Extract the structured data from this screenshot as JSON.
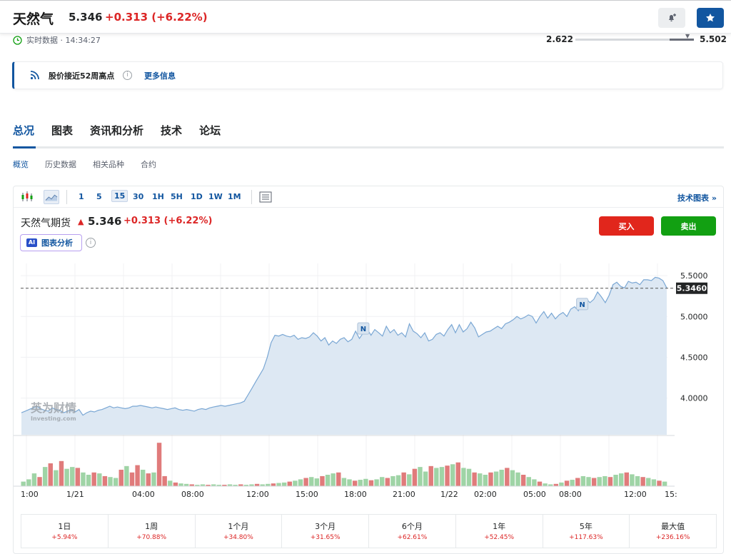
{
  "header": {
    "name": "天然气",
    "price": "5.346",
    "change": "+0.313",
    "change_pct": "(+6.22%)",
    "realtime": "实时数据 · 14:34:27",
    "range_low": "2.622",
    "range_high": "5.502"
  },
  "alert": {
    "text": "股价接近52周高点",
    "more": "更多信息"
  },
  "tabs": [
    "总况",
    "图表",
    "资讯和分析",
    "技术",
    "论坛"
  ],
  "subtabs": [
    "概览",
    "历史数据",
    "相关品种",
    "合约"
  ],
  "toolbar": {
    "timeframes": [
      "1",
      "5",
      "15",
      "30",
      "1H",
      "5H",
      "1D",
      "1W",
      "1M"
    ],
    "selected": "15",
    "tech_link": "技术图表 »"
  },
  "chart_header": {
    "name": "天然气期货",
    "price": "5.346",
    "change": "+0.313",
    "change_pct": "(+6.22%)",
    "ai_label": "图表分析",
    "ai_badge": "AI",
    "buy": "买入",
    "sell": "卖出"
  },
  "chart_data": {
    "type": "area",
    "ylim": [
      3.55,
      5.65
    ],
    "yticks": [
      "5.5000",
      "5.0000",
      "4.5000",
      "4.0000"
    ],
    "ytick_values": [
      5.5,
      5.0,
      4.5,
      4.0
    ],
    "current_label": "5.3460",
    "current_value": 5.346,
    "xticks": [
      "1:00",
      "1/21",
      "04:00",
      "08:00",
      "12:00",
      "15:00",
      "18:00",
      "21:00",
      "1/22",
      "02:00",
      "05:00",
      "08:00",
      "12:00",
      "15:"
    ],
    "watermark_cn": "英为财情",
    "watermark_en": "Investing.com",
    "news_marker": "N",
    "series": [
      {
        "values": [
          3.82,
          3.84,
          3.86,
          3.88,
          3.9,
          3.87,
          3.85,
          3.84,
          3.88,
          3.86,
          3.85,
          3.82,
          3.84,
          3.86,
          3.83,
          3.86,
          3.79,
          3.82,
          3.84,
          3.83,
          3.85,
          3.86,
          3.88,
          3.9,
          3.88,
          3.89,
          3.88,
          3.87,
          3.88,
          3.9,
          3.9,
          3.91,
          3.9,
          3.89,
          3.88,
          3.89,
          3.88,
          3.87,
          3.86,
          3.87,
          3.88,
          3.86,
          3.85,
          3.86,
          3.85,
          3.84,
          3.86,
          3.87,
          3.86,
          3.88,
          3.89,
          3.9,
          3.91,
          3.9,
          3.91,
          3.92,
          3.93,
          3.94,
          3.96,
          4.04,
          4.12,
          4.2,
          4.28,
          4.36,
          4.5,
          4.68,
          4.77,
          4.76,
          4.78,
          4.76,
          4.75,
          4.77,
          4.72,
          4.74,
          4.73,
          4.75,
          4.8,
          4.76,
          4.7,
          4.74,
          4.65,
          4.7,
          4.67,
          4.72,
          4.74,
          4.69,
          4.72,
          4.82,
          4.73,
          4.8,
          4.85,
          4.77,
          4.84,
          4.8,
          4.76,
          4.88,
          4.8,
          4.84,
          4.77,
          4.8,
          4.75,
          4.91,
          4.82,
          4.79,
          4.74,
          4.8,
          4.7,
          4.72,
          4.78,
          4.8,
          4.76,
          4.84,
          4.9,
          4.8,
          4.9,
          4.81,
          4.85,
          4.93,
          4.86,
          4.75,
          4.78,
          4.81,
          4.82,
          4.85,
          4.88,
          4.85,
          4.91,
          4.93,
          4.96,
          5.0,
          4.97,
          4.99,
          5.02,
          5.0,
          4.92,
          5.0,
          5.06,
          4.98,
          5.04,
          4.97,
          5.02,
          5.05,
          5.0,
          5.09,
          5.12,
          5.07,
          5.16,
          5.22,
          5.17,
          5.21,
          5.3,
          5.24,
          5.17,
          5.26,
          5.39,
          5.42,
          5.37,
          5.35,
          5.43,
          5.41,
          5.42,
          5.39,
          5.45,
          5.45,
          5.44,
          5.48,
          5.47,
          5.44,
          5.35
        ]
      }
    ],
    "volume": [
      {
        "v": 0.1,
        "d": "g"
      },
      {
        "v": 0.15,
        "d": "g"
      },
      {
        "v": 0.28,
        "d": "g"
      },
      {
        "v": 0.2,
        "d": "r"
      },
      {
        "v": 0.42,
        "d": "g"
      },
      {
        "v": 0.5,
        "d": "r"
      },
      {
        "v": 0.35,
        "d": "g"
      },
      {
        "v": 0.55,
        "d": "r"
      },
      {
        "v": 0.38,
        "d": "g"
      },
      {
        "v": 0.42,
        "d": "g"
      },
      {
        "v": 0.4,
        "d": "r"
      },
      {
        "v": 0.3,
        "d": "g"
      },
      {
        "v": 0.25,
        "d": "g"
      },
      {
        "v": 0.3,
        "d": "r"
      },
      {
        "v": 0.28,
        "d": "g"
      },
      {
        "v": 0.22,
        "d": "r"
      },
      {
        "v": 0.2,
        "d": "g"
      },
      {
        "v": 0.18,
        "d": "g"
      },
      {
        "v": 0.36,
        "d": "r"
      },
      {
        "v": 0.44,
        "d": "g"
      },
      {
        "v": 0.3,
        "d": "r"
      },
      {
        "v": 0.46,
        "d": "r"
      },
      {
        "v": 0.36,
        "d": "g"
      },
      {
        "v": 0.28,
        "d": "r"
      },
      {
        "v": 0.3,
        "d": "g"
      },
      {
        "v": 0.95,
        "d": "r"
      },
      {
        "v": 0.22,
        "d": "r"
      },
      {
        "v": 0.12,
        "d": "g"
      },
      {
        "v": 0.08,
        "d": "r"
      },
      {
        "v": 0.06,
        "d": "g"
      },
      {
        "v": 0.05,
        "d": "g"
      },
      {
        "v": 0.04,
        "d": "r"
      },
      {
        "v": 0.03,
        "d": "g"
      },
      {
        "v": 0.04,
        "d": "g"
      },
      {
        "v": 0.03,
        "d": "r"
      },
      {
        "v": 0.04,
        "d": "g"
      },
      {
        "v": 0.03,
        "d": "g"
      },
      {
        "v": 0.03,
        "d": "r"
      },
      {
        "v": 0.04,
        "d": "g"
      },
      {
        "v": 0.03,
        "d": "g"
      },
      {
        "v": 0.04,
        "d": "r"
      },
      {
        "v": 0.03,
        "d": "g"
      },
      {
        "v": 0.04,
        "d": "g"
      },
      {
        "v": 0.05,
        "d": "r"
      },
      {
        "v": 0.04,
        "d": "g"
      },
      {
        "v": 0.05,
        "d": "g"
      },
      {
        "v": 0.06,
        "d": "r"
      },
      {
        "v": 0.07,
        "d": "g"
      },
      {
        "v": 0.08,
        "d": "g"
      },
      {
        "v": 0.1,
        "d": "r"
      },
      {
        "v": 0.12,
        "d": "g"
      },
      {
        "v": 0.15,
        "d": "g"
      },
      {
        "v": 0.18,
        "d": "r"
      },
      {
        "v": 0.2,
        "d": "g"
      },
      {
        "v": 0.17,
        "d": "g"
      },
      {
        "v": 0.22,
        "d": "r"
      },
      {
        "v": 0.25,
        "d": "g"
      },
      {
        "v": 0.28,
        "d": "g"
      },
      {
        "v": 0.3,
        "d": "r"
      },
      {
        "v": 0.18,
        "d": "g"
      },
      {
        "v": 0.15,
        "d": "g"
      },
      {
        "v": 0.12,
        "d": "r"
      },
      {
        "v": 0.14,
        "d": "g"
      },
      {
        "v": 0.16,
        "d": "g"
      },
      {
        "v": 0.13,
        "d": "r"
      },
      {
        "v": 0.15,
        "d": "g"
      },
      {
        "v": 0.2,
        "d": "g"
      },
      {
        "v": 0.18,
        "d": "r"
      },
      {
        "v": 0.22,
        "d": "g"
      },
      {
        "v": 0.24,
        "d": "g"
      },
      {
        "v": 0.3,
        "d": "r"
      },
      {
        "v": 0.26,
        "d": "g"
      },
      {
        "v": 0.38,
        "d": "r"
      },
      {
        "v": 0.42,
        "d": "g"
      },
      {
        "v": 0.32,
        "d": "g"
      },
      {
        "v": 0.44,
        "d": "r"
      },
      {
        "v": 0.4,
        "d": "g"
      },
      {
        "v": 0.42,
        "d": "g"
      },
      {
        "v": 0.45,
        "d": "r"
      },
      {
        "v": 0.48,
        "d": "g"
      },
      {
        "v": 0.52,
        "d": "r"
      },
      {
        "v": 0.4,
        "d": "g"
      },
      {
        "v": 0.38,
        "d": "g"
      },
      {
        "v": 0.3,
        "d": "r"
      },
      {
        "v": 0.28,
        "d": "g"
      },
      {
        "v": 0.25,
        "d": "g"
      },
      {
        "v": 0.3,
        "d": "r"
      },
      {
        "v": 0.32,
        "d": "g"
      },
      {
        "v": 0.36,
        "d": "g"
      },
      {
        "v": 0.4,
        "d": "r"
      },
      {
        "v": 0.35,
        "d": "g"
      },
      {
        "v": 0.3,
        "d": "g"
      },
      {
        "v": 0.25,
        "d": "r"
      },
      {
        "v": 0.2,
        "d": "g"
      },
      {
        "v": 0.15,
        "d": "g"
      },
      {
        "v": 0.1,
        "d": "r"
      },
      {
        "v": 0.06,
        "d": "g"
      },
      {
        "v": 0.04,
        "d": "g"
      },
      {
        "v": 0.05,
        "d": "r"
      },
      {
        "v": 0.08,
        "d": "g"
      },
      {
        "v": 0.12,
        "d": "r"
      },
      {
        "v": 0.14,
        "d": "g"
      },
      {
        "v": 0.18,
        "d": "r"
      },
      {
        "v": 0.22,
        "d": "g"
      },
      {
        "v": 0.2,
        "d": "g"
      },
      {
        "v": 0.18,
        "d": "r"
      },
      {
        "v": 0.2,
        "d": "g"
      },
      {
        "v": 0.22,
        "d": "g"
      },
      {
        "v": 0.2,
        "d": "r"
      },
      {
        "v": 0.25,
        "d": "g"
      },
      {
        "v": 0.28,
        "d": "g"
      },
      {
        "v": 0.3,
        "d": "r"
      },
      {
        "v": 0.26,
        "d": "g"
      },
      {
        "v": 0.22,
        "d": "g"
      },
      {
        "v": 0.2,
        "d": "r"
      },
      {
        "v": 0.18,
        "d": "g"
      },
      {
        "v": 0.15,
        "d": "g"
      },
      {
        "v": 0.12,
        "d": "r"
      },
      {
        "v": 0.1,
        "d": "g"
      }
    ]
  },
  "periods": [
    {
      "label": "1日",
      "value": "+5.94%"
    },
    {
      "label": "1周",
      "value": "+70.88%"
    },
    {
      "label": "1个月",
      "value": "+34.80%"
    },
    {
      "label": "3个月",
      "value": "+31.65%"
    },
    {
      "label": "6个月",
      "value": "+62.61%"
    },
    {
      "label": "1年",
      "value": "+52.45%"
    },
    {
      "label": "5年",
      "value": "+117.63%"
    },
    {
      "label": "最大值",
      "value": "+236.16%"
    }
  ],
  "colors": {
    "accent": "#1256a0",
    "up": "#dc2626",
    "buy": "#e1261c",
    "sell": "#12a012",
    "line": "#7aa7d4",
    "fill": "#dde8f3"
  }
}
